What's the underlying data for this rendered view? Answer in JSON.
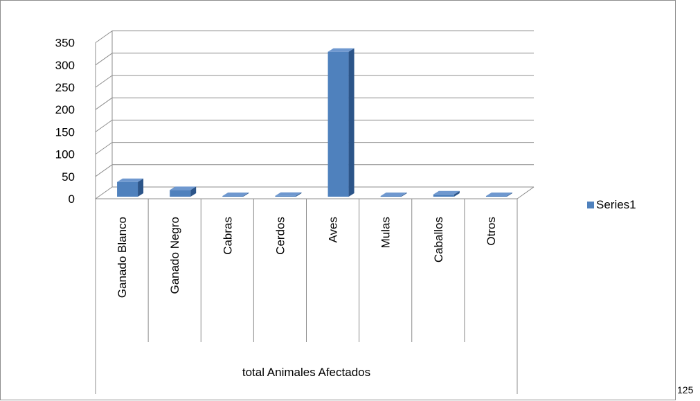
{
  "chart_data": {
    "type": "bar",
    "style": "3d-column",
    "categories": [
      "Ganado Blanco",
      "Ganado Negro",
      "Cabras",
      "Cerdos",
      "Aves",
      "Mulas",
      "Caballos",
      "Otros"
    ],
    "group_label": "total Animales Afectados",
    "series": [
      {
        "name": "Series1",
        "values": [
          33,
          15,
          0,
          2,
          325,
          0,
          5,
          0
        ]
      }
    ],
    "ylim": [
      0,
      350
    ],
    "yticks": [
      0,
      50,
      100,
      150,
      200,
      250,
      300,
      350
    ],
    "grid": true,
    "legend": "right",
    "colors": {
      "bar": "#4f81bd",
      "bar_side": "#2c5589",
      "bar_top": "#6f98cf",
      "grid": "#8c8c8c"
    }
  },
  "page_number": "125"
}
